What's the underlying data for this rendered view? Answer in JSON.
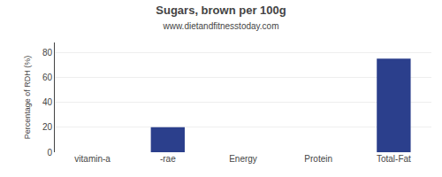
{
  "chart_data": {
    "type": "bar",
    "title": "Sugars, brown per 100g",
    "subtitle": "www.dietandfitnesstoday.com",
    "categories": [
      "vitamin-a",
      "-rae",
      "Energy",
      "Protein",
      "Total-Fat"
    ],
    "values": [
      0,
      20,
      0,
      0,
      75
    ],
    "color": "#2b3f8c",
    "ylabel": "Percentage of RDH (%)",
    "ylim": [
      0,
      88
    ],
    "yticks": [
      0,
      20,
      40,
      60,
      80
    ],
    "grid": true
  }
}
